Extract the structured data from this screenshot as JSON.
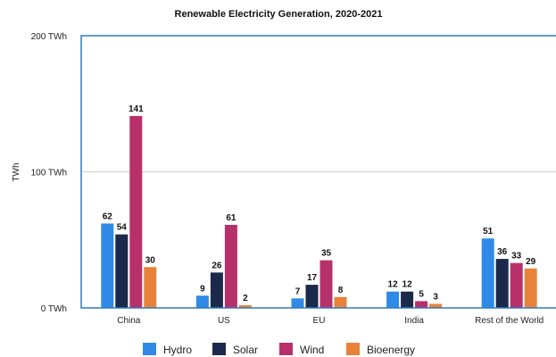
{
  "chart_data": {
    "type": "bar",
    "title": "Renewable Electricity Generation, 2020-2021",
    "ylabel": "TWh",
    "xlabel": "",
    "ylim": [
      0,
      200
    ],
    "yticks": [
      {
        "value": 0,
        "label": "0 TWh"
      },
      {
        "value": 100,
        "label": "100 TWh"
      },
      {
        "value": 200,
        "label": "200 TWh"
      }
    ],
    "grid": true,
    "legend_position": "bottom",
    "categories": [
      "China",
      "US",
      "EU",
      "India",
      "Rest of the World"
    ],
    "series": [
      {
        "name": "Hydro",
        "color": "#2e8ae6",
        "values": [
          62,
          9,
          7,
          12,
          51
        ],
        "labels": [
          "62",
          "9",
          "7",
          "12",
          "51"
        ]
      },
      {
        "name": "Solar",
        "color": "#1b2a4a",
        "values": [
          54,
          26,
          17,
          12,
          36
        ],
        "labels": [
          "54",
          "26",
          "17",
          "12",
          "36"
        ]
      },
      {
        "name": "Wind",
        "color": "#b8306a",
        "values": [
          141,
          61,
          35,
          5,
          33
        ],
        "labels": [
          "141",
          "61",
          "35",
          "5",
          "33"
        ]
      },
      {
        "name": "Bioenergy",
        "color": "#e8823a",
        "values": [
          30,
          2,
          8,
          3,
          29
        ],
        "labels": [
          "30",
          "2",
          "8",
          "3",
          "29"
        ]
      }
    ]
  }
}
